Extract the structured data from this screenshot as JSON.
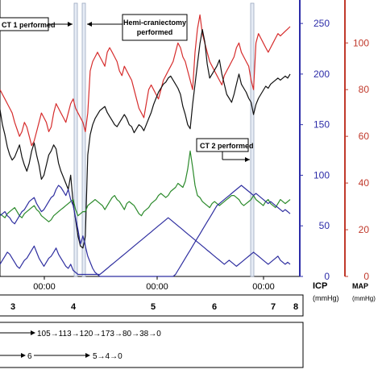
{
  "chart_data": {
    "type": "line",
    "x_ticks": [
      "00:00",
      "00:00",
      "00:00"
    ],
    "day_markers": [
      "3",
      "4",
      "5",
      "6",
      "7",
      "8"
    ],
    "right_axis_1": {
      "label": "ICP\n(mmHg)",
      "color": "#2c2ca8",
      "ticks": [
        0,
        50,
        100,
        150,
        200,
        250
      ],
      "ylim": [
        0,
        270
      ]
    },
    "right_axis_2": {
      "label": "MAP\n(mmHg)",
      "color": "#c0392b",
      "ticks": [
        0,
        20,
        40,
        60,
        80,
        100
      ],
      "ylim": [
        0,
        117
      ]
    },
    "annotations": [
      {
        "id": "ct1",
        "text": "CT 1 performed"
      },
      {
        "id": "hemi",
        "text": "Hemi-craniectomy\nperformed"
      },
      {
        "id": "ct2",
        "text": "CT 2 performed"
      }
    ],
    "sequence_rows": [
      {
        "text": "105→113→120→173→80→38→0"
      },
      {
        "text": "6"
      },
      {
        "text": "5→4→0"
      }
    ],
    "series": [
      {
        "color": "#d62d2d",
        "axis": "MAP",
        "x": [
          0,
          3,
          6,
          9,
          12,
          15,
          18,
          21,
          24,
          27,
          30,
          33,
          36,
          39,
          42,
          45,
          48,
          51,
          54,
          57,
          60,
          63,
          66,
          69,
          72,
          75,
          78,
          81,
          84,
          87,
          90,
          93,
          96,
          99,
          102,
          105,
          108,
          111,
          114,
          117,
          120,
          123,
          126,
          129,
          132,
          135,
          138,
          141,
          144,
          147,
          150,
          153,
          156,
          159,
          162,
          165,
          168,
          171,
          174,
          177,
          180,
          183,
          186,
          189,
          192,
          195,
          198,
          201,
          204,
          207,
          210,
          213,
          216,
          219,
          222,
          225,
          228,
          231,
          234,
          237,
          240,
          243,
          246,
          249,
          252,
          255,
          258,
          261,
          264,
          267,
          270,
          273,
          276,
          279,
          282,
          285,
          288,
          291,
          294,
          297,
          300,
          303,
          306,
          309,
          312,
          315,
          318,
          321,
          324,
          327,
          330,
          333,
          336,
          339,
          342,
          345,
          348,
          351,
          354,
          357
        ],
        "values": [
          80,
          78,
          76,
          74,
          72,
          70,
          66,
          63,
          60,
          62,
          66,
          64,
          60,
          56,
          58,
          62,
          66,
          70,
          68,
          66,
          62,
          64,
          70,
          74,
          72,
          70,
          68,
          66,
          70,
          74,
          76,
          72,
          70,
          68,
          66,
          62,
          70,
          88,
          92,
          94,
          96,
          94,
          92,
          90,
          96,
          98,
          96,
          94,
          92,
          88,
          86,
          90,
          88,
          86,
          84,
          80,
          76,
          72,
          70,
          68,
          74,
          80,
          82,
          80,
          78,
          76,
          80,
          84,
          86,
          88,
          90,
          92,
          96,
          100,
          98,
          94,
          92,
          88,
          84,
          80,
          96,
          106,
          112,
          104,
          100,
          96,
          92,
          90,
          88,
          86,
          84,
          82,
          86,
          88,
          90,
          92,
          94,
          98,
          100,
          96,
          94,
          92,
          90,
          84,
          80,
          100,
          104,
          102,
          100,
          98,
          96,
          98,
          100,
          102,
          104,
          103,
          104,
          105,
          106,
          107
        ]
      },
      {
        "color": "#111111",
        "axis": "ICP",
        "x": [
          0,
          3,
          6,
          9,
          12,
          15,
          18,
          21,
          24,
          27,
          30,
          33,
          36,
          39,
          42,
          45,
          48,
          51,
          54,
          57,
          60,
          63,
          66,
          69,
          72,
          75,
          78,
          81,
          84,
          87,
          90,
          93,
          96,
          99,
          102,
          105,
          108,
          111,
          114,
          117,
          120,
          123,
          126,
          129,
          132,
          135,
          138,
          141,
          144,
          147,
          150,
          153,
          156,
          159,
          162,
          165,
          168,
          171,
          174,
          177,
          180,
          183,
          186,
          189,
          192,
          195,
          198,
          201,
          204,
          207,
          210,
          213,
          216,
          219,
          222,
          225,
          228,
          231,
          234,
          237,
          240,
          243,
          246,
          249,
          252,
          255,
          258,
          261,
          264,
          267,
          270,
          273,
          276,
          279,
          282,
          285,
          288,
          291,
          294,
          297,
          300,
          303,
          306,
          309,
          312,
          315,
          318,
          321,
          324,
          327,
          330,
          333,
          336,
          339,
          342,
          345,
          348,
          351,
          354,
          357
        ],
        "values": [
          165,
          150,
          140,
          128,
          120,
          115,
          118,
          124,
          130,
          118,
          110,
          104,
          112,
          124,
          132,
          120,
          110,
          96,
          100,
          110,
          120,
          124,
          130,
          126,
          112,
          104,
          98,
          92,
          86,
          100,
          72,
          56,
          40,
          30,
          28,
          40,
          120,
          140,
          150,
          156,
          160,
          164,
          166,
          168,
          162,
          158,
          154,
          150,
          148,
          152,
          156,
          160,
          156,
          150,
          148,
          142,
          146,
          150,
          148,
          144,
          150,
          156,
          162,
          170,
          176,
          182,
          186,
          190,
          192,
          196,
          198,
          194,
          190,
          186,
          180,
          168,
          160,
          150,
          146,
          170,
          190,
          210,
          230,
          244,
          232,
          210,
          196,
          200,
          204,
          208,
          214,
          200,
          190,
          180,
          176,
          172,
          180,
          190,
          200,
          190,
          186,
          182,
          176,
          172,
          160,
          170,
          176,
          180,
          184,
          188,
          186,
          190,
          192,
          194,
          196,
          194,
          196,
          198,
          196,
          200
        ]
      },
      {
        "color": "#2b8a2b",
        "axis": "ICP",
        "x": [
          0,
          3,
          6,
          9,
          12,
          15,
          18,
          21,
          24,
          27,
          30,
          33,
          36,
          39,
          42,
          45,
          48,
          51,
          54,
          57,
          60,
          63,
          66,
          69,
          72,
          75,
          78,
          81,
          84,
          87,
          90,
          93,
          96,
          99,
          102,
          105,
          108,
          111,
          114,
          117,
          120,
          123,
          126,
          129,
          132,
          135,
          138,
          141,
          144,
          147,
          150,
          153,
          156,
          159,
          162,
          165,
          168,
          171,
          174,
          177,
          180,
          183,
          186,
          189,
          192,
          195,
          198,
          201,
          204,
          207,
          210,
          213,
          216,
          219,
          222,
          225,
          228,
          231,
          234,
          237,
          240,
          243,
          246,
          249,
          252,
          255,
          258,
          261,
          264,
          267,
          270,
          273,
          276,
          279,
          282,
          285,
          288,
          291,
          294,
          297,
          300,
          303,
          306,
          309,
          312,
          315,
          318,
          321,
          324,
          327,
          330,
          333,
          336,
          339,
          342,
          345,
          348,
          351,
          354,
          357
        ],
        "values": [
          62,
          60,
          58,
          62,
          64,
          66,
          68,
          64,
          60,
          58,
          62,
          64,
          66,
          68,
          70,
          66,
          64,
          60,
          58,
          56,
          54,
          56,
          60,
          62,
          64,
          66,
          68,
          70,
          72,
          74,
          76,
          66,
          60,
          62,
          64,
          64,
          70,
          72,
          74,
          76,
          74,
          72,
          70,
          66,
          70,
          74,
          78,
          80,
          76,
          74,
          70,
          66,
          72,
          74,
          72,
          70,
          66,
          62,
          60,
          64,
          66,
          68,
          72,
          74,
          76,
          80,
          82,
          80,
          78,
          80,
          84,
          86,
          88,
          92,
          90,
          88,
          94,
          106,
          124,
          108,
          90,
          80,
          78,
          74,
          72,
          70,
          68,
          72,
          74,
          72,
          70,
          72,
          74,
          76,
          78,
          80,
          80,
          78,
          76,
          72,
          70,
          72,
          74,
          76,
          80,
          76,
          74,
          72,
          70,
          74,
          76,
          72,
          70,
          68,
          72,
          76,
          74,
          72,
          74,
          76
        ]
      },
      {
        "color": "#2f2fa0",
        "axis": "ICP",
        "x": [
          0,
          3,
          6,
          9,
          12,
          15,
          18,
          21,
          24,
          27,
          30,
          33,
          36,
          39,
          42,
          45,
          48,
          51,
          54,
          57,
          60,
          63,
          66,
          69,
          72,
          75,
          78,
          81,
          84,
          87,
          90,
          93,
          96,
          99,
          102,
          105,
          108,
          111,
          114,
          117,
          120,
          123,
          126,
          129,
          132,
          135,
          138,
          141,
          144,
          147,
          150,
          153,
          156,
          159,
          162,
          165,
          168,
          171,
          174,
          177,
          180,
          183,
          186,
          189,
          192,
          195,
          198,
          201,
          204,
          207,
          210,
          213,
          216,
          219,
          222,
          225,
          228,
          231,
          234,
          237,
          240,
          243,
          246,
          249,
          252,
          255,
          258,
          261,
          264,
          267,
          270,
          273,
          276,
          279,
          282,
          285,
          288,
          291,
          294,
          297,
          300,
          303,
          306,
          309,
          312,
          315,
          318,
          321,
          324,
          327,
          330,
          333,
          336,
          339,
          342,
          345,
          348,
          351,
          354,
          357
        ],
        "values": [
          60,
          62,
          64,
          60,
          58,
          54,
          52,
          56,
          60,
          64,
          66,
          70,
          74,
          76,
          78,
          72,
          68,
          64,
          66,
          70,
          74,
          78,
          80,
          86,
          90,
          88,
          84,
          80,
          86,
          76,
          70,
          58,
          46,
          32,
          40,
          30,
          20,
          14,
          8,
          4,
          2,
          0,
          0,
          0,
          0,
          0,
          0,
          0,
          0,
          0,
          0,
          0,
          0,
          0,
          0,
          0,
          0,
          0,
          0,
          0,
          0,
          0,
          0,
          0,
          0,
          0,
          0,
          0,
          0,
          0,
          0,
          0,
          2,
          6,
          10,
          14,
          18,
          22,
          26,
          30,
          34,
          38,
          42,
          46,
          50,
          54,
          58,
          62,
          66,
          70,
          72,
          74,
          76,
          78,
          80,
          82,
          84,
          86,
          88,
          90,
          88,
          86,
          84,
          82,
          80,
          82,
          80,
          78,
          76,
          74,
          72,
          74,
          72,
          70,
          68,
          66,
          64,
          66,
          64,
          62
        ]
      },
      {
        "color": "#2f2fa0",
        "axis": "ICP",
        "x": [
          0,
          3,
          6,
          9,
          12,
          15,
          18,
          21,
          24,
          27,
          30,
          33,
          36,
          39,
          42,
          45,
          48,
          51,
          54,
          57,
          60,
          63,
          66,
          69,
          72,
          75,
          78,
          81,
          84,
          87,
          90,
          93,
          96,
          99,
          102,
          105,
          108,
          111,
          114,
          117,
          120,
          123,
          126,
          129,
          132,
          135,
          138,
          141,
          144,
          147,
          150,
          153,
          156,
          159,
          162,
          165,
          168,
          171,
          174,
          177,
          180,
          183,
          186,
          189,
          192,
          195,
          198,
          201,
          204,
          207,
          210,
          213,
          216,
          219,
          222,
          225,
          228,
          231,
          234,
          237,
          240,
          243,
          246,
          249,
          252,
          255,
          258,
          261,
          264,
          267,
          270,
          273,
          276,
          279,
          282,
          285,
          288,
          291,
          294,
          297,
          300,
          303,
          306,
          309,
          312,
          315,
          318,
          321,
          324,
          327,
          330,
          333,
          336,
          339,
          342,
          345,
          348,
          351,
          354,
          357
        ],
        "values": [
          12,
          16,
          20,
          24,
          22,
          18,
          14,
          10,
          8,
          12,
          16,
          18,
          22,
          26,
          30,
          24,
          18,
          14,
          10,
          14,
          18,
          20,
          24,
          28,
          22,
          18,
          14,
          10,
          8,
          12,
          6,
          4,
          2,
          2,
          2,
          2,
          2,
          2,
          2,
          2,
          2,
          2,
          4,
          6,
          8,
          10,
          12,
          14,
          16,
          18,
          20,
          22,
          24,
          26,
          28,
          30,
          32,
          34,
          36,
          38,
          40,
          42,
          44,
          46,
          48,
          50,
          52,
          54,
          56,
          58,
          56,
          54,
          52,
          50,
          48,
          46,
          44,
          42,
          40,
          38,
          36,
          34,
          32,
          30,
          28,
          26,
          24,
          22,
          20,
          18,
          16,
          14,
          12,
          14,
          16,
          14,
          12,
          10,
          12,
          14,
          16,
          18,
          20,
          22,
          24,
          22,
          20,
          18,
          16,
          14,
          12,
          14,
          16,
          18,
          20,
          16,
          14,
          12,
          14,
          12
        ]
      }
    ]
  }
}
